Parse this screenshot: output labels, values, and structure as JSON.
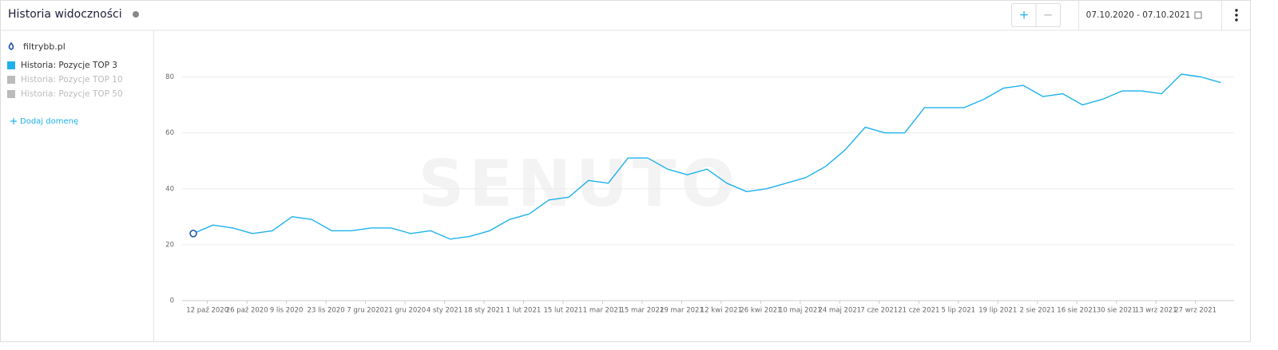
{
  "header": {
    "title": "Historia widoczności",
    "zoom_in": "+",
    "zoom_out": "−",
    "date_range": "07.10.2020 - 07.10.2021"
  },
  "sidebar": {
    "domain": "filtrybb.pl",
    "legend_inactive": [
      "Historia: Pozycje TOP 10",
      "Historia: Pozycje TOP 50"
    ],
    "add_domain": "Dodaj domenę"
  },
  "chart_data": {
    "type": "line",
    "watermark": "SENUTO",
    "x": [
      "2020-10-07",
      "2020-10-14",
      "2020-10-21",
      "2020-10-28",
      "2020-11-04",
      "2020-11-11",
      "2020-11-18",
      "2020-11-25",
      "2020-12-02",
      "2020-12-09",
      "2020-12-16",
      "2020-12-23",
      "2020-12-30",
      "2021-01-06",
      "2021-01-13",
      "2021-01-20",
      "2021-01-27",
      "2021-02-03",
      "2021-02-10",
      "2021-02-17",
      "2021-02-24",
      "2021-03-03",
      "2021-03-10",
      "2021-03-17",
      "2021-03-24",
      "2021-03-31",
      "2021-04-07",
      "2021-04-14",
      "2021-04-21",
      "2021-04-28",
      "2021-05-05",
      "2021-05-12",
      "2021-05-19",
      "2021-05-26",
      "2021-06-02",
      "2021-06-09",
      "2021-06-16",
      "2021-06-23",
      "2021-06-30",
      "2021-07-07",
      "2021-07-14",
      "2021-07-21",
      "2021-07-28",
      "2021-08-04",
      "2021-08-11",
      "2021-08-18",
      "2021-08-25",
      "2021-09-01",
      "2021-09-08",
      "2021-09-15",
      "2021-09-22",
      "2021-09-29",
      "2021-10-06"
    ],
    "series": [
      {
        "name": "Historia: Pozycje TOP 3",
        "color": "#1eb1ec",
        "values": [
          24,
          27,
          26,
          24,
          25,
          30,
          29,
          25,
          25,
          26,
          26,
          24,
          25,
          22,
          23,
          25,
          29,
          31,
          36,
          37,
          43,
          42,
          51,
          51,
          47,
          45,
          47,
          42,
          39,
          40,
          42,
          44,
          48,
          54,
          62,
          60,
          60,
          69,
          69,
          69,
          72,
          76,
          77,
          73,
          74,
          70,
          72,
          75,
          75,
          74,
          81,
          80,
          78
        ]
      }
    ],
    "xlim": [
      "2020-10-07",
      "2021-10-07"
    ],
    "xticks": [
      {
        "value": "2020-10-12",
        "label": "12 paź 2020"
      },
      {
        "value": "2020-10-26",
        "label": "26 paź 2020"
      },
      {
        "value": "2020-11-09",
        "label": "9 lis 2020"
      },
      {
        "value": "2020-11-23",
        "label": "23 lis 2020"
      },
      {
        "value": "2020-12-07",
        "label": "7 gru 2020"
      },
      {
        "value": "2020-12-21",
        "label": "21 gru 2020"
      },
      {
        "value": "2021-01-04",
        "label": "4 sty 2021"
      },
      {
        "value": "2021-01-18",
        "label": "18 sty 2021"
      },
      {
        "value": "2021-02-01",
        "label": "1 lut 2021"
      },
      {
        "value": "2021-02-15",
        "label": "15 lut 2021"
      },
      {
        "value": "2021-03-01",
        "label": "1 mar 2021"
      },
      {
        "value": "2021-03-15",
        "label": "15 mar 2021"
      },
      {
        "value": "2021-03-29",
        "label": "29 mar 2021"
      },
      {
        "value": "2021-04-12",
        "label": "12 kwi 2021"
      },
      {
        "value": "2021-04-26",
        "label": "26 kwi 2021"
      },
      {
        "value": "2021-05-10",
        "label": "10 maj 2021"
      },
      {
        "value": "2021-05-24",
        "label": "24 maj 2021"
      },
      {
        "value": "2021-06-07",
        "label": "7 cze 2021"
      },
      {
        "value": "2021-06-21",
        "label": "21 cze 2021"
      },
      {
        "value": "2021-07-05",
        "label": "5 lip 2021"
      },
      {
        "value": "2021-07-19",
        "label": "19 lip 2021"
      },
      {
        "value": "2021-08-02",
        "label": "2 sie 2021"
      },
      {
        "value": "2021-08-16",
        "label": "16 sie 2021"
      },
      {
        "value": "2021-08-30",
        "label": "30 sie 2021"
      },
      {
        "value": "2021-09-13",
        "label": "13 wrz 2021"
      },
      {
        "value": "2021-09-27",
        "label": "27 wrz 2021"
      }
    ],
    "ylim": [
      0,
      87
    ],
    "yticks": [
      0,
      20,
      40,
      60,
      80
    ],
    "grid": true
  }
}
